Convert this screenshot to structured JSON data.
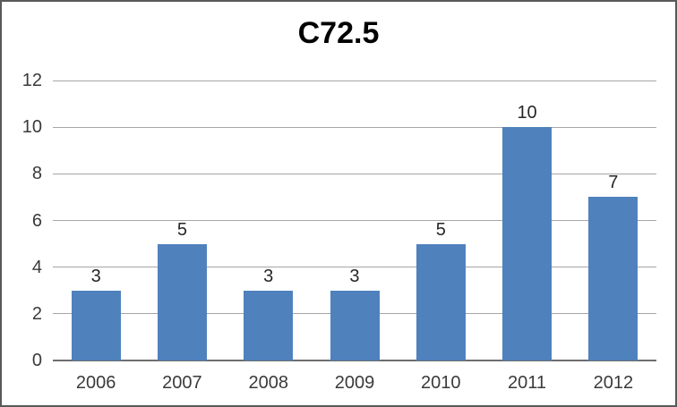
{
  "chart_data": {
    "type": "bar",
    "title": "C72.5",
    "categories": [
      "2006",
      "2007",
      "2008",
      "2009",
      "2010",
      "2011",
      "2012"
    ],
    "values": [
      3,
      5,
      3,
      3,
      5,
      10,
      7
    ],
    "xlabel": "",
    "ylabel": "",
    "ylim": [
      0,
      12
    ],
    "ytick_step": 2,
    "ytick_labels": [
      "0",
      "2",
      "4",
      "6",
      "8",
      "10",
      "12"
    ],
    "grid": true,
    "legend_position": "none",
    "data_labels_visible": true,
    "colors": {
      "bar": "#4F81BD",
      "gridline": "#A6A6A6",
      "axis_line": "#6E6E6E",
      "tick_label": "#3A3A3A",
      "value_label": "#262626",
      "title": "#000000",
      "background": "#FFFFFF",
      "border": "#595959"
    }
  }
}
